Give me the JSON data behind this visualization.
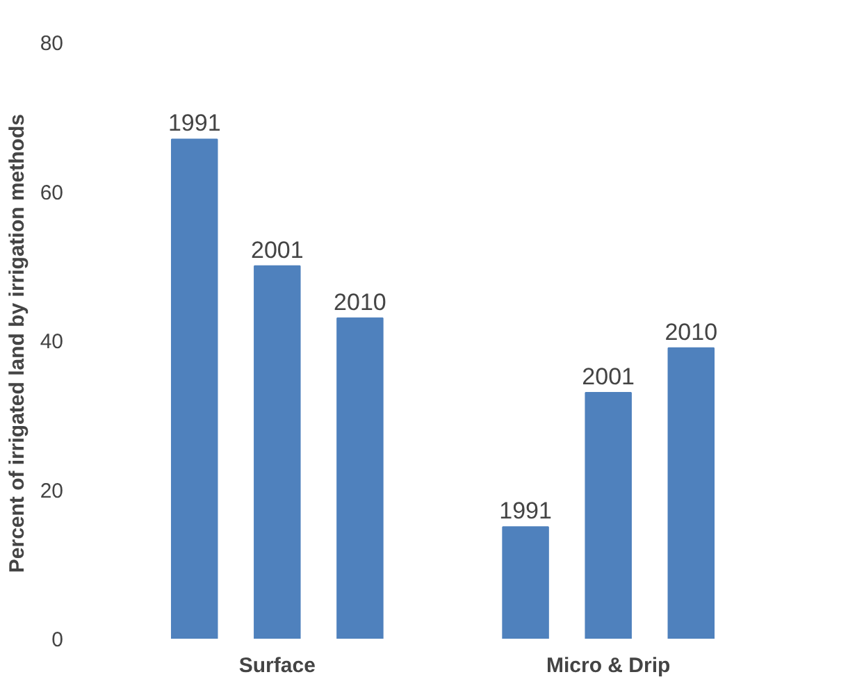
{
  "chart_data": {
    "type": "bar",
    "ylabel": "Percent  of irrigated land by irrigation methods",
    "categories": [
      "Surface",
      "Micro & Drip"
    ],
    "series": [
      {
        "name": "1991",
        "color": "#4f81bd",
        "values": [
          67,
          15
        ]
      },
      {
        "name": "2001",
        "color": "#4f81bd",
        "values": [
          50,
          33
        ]
      },
      {
        "name": "2010",
        "color": "#4f81bd",
        "values": [
          43,
          39
        ]
      }
    ],
    "ylim": [
      0,
      80
    ],
    "yticks": [
      0,
      20,
      40,
      60,
      80
    ],
    "grid": false
  }
}
